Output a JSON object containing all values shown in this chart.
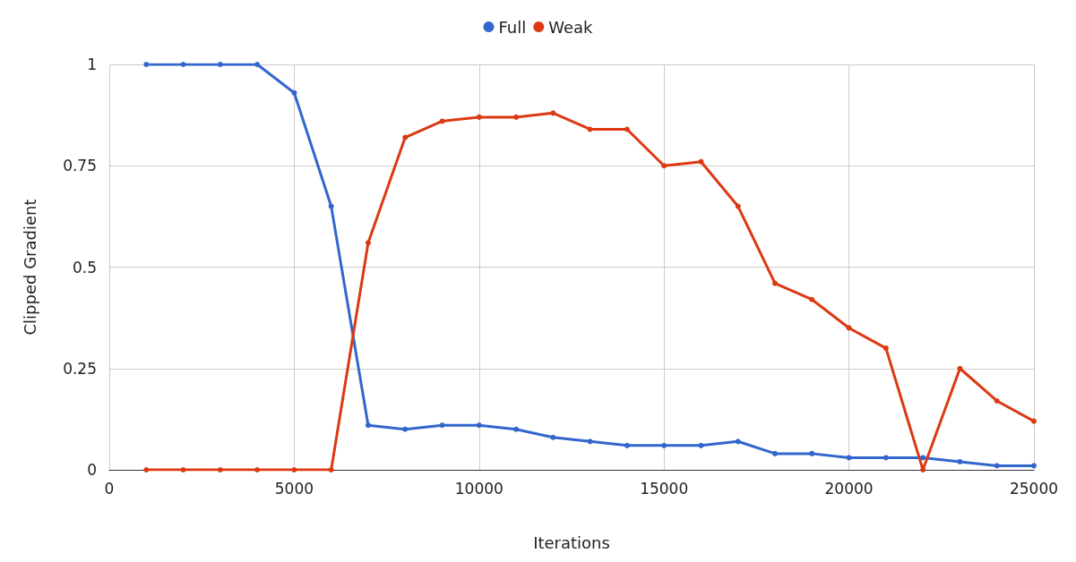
{
  "chart_data": {
    "type": "line",
    "xlabel": "Iterations",
    "ylabel": "Clipped Gradient",
    "x": [
      1000,
      2000,
      3000,
      4000,
      5000,
      6000,
      7000,
      8000,
      9000,
      10000,
      11000,
      12000,
      13000,
      14000,
      15000,
      16000,
      17000,
      18000,
      19000,
      20000,
      21000,
      22000,
      23000,
      24000,
      25000
    ],
    "series": [
      {
        "name": "Full",
        "color": "#3366cc",
        "values": [
          1,
          1,
          1,
          1,
          0.93,
          0.65,
          0.11,
          0.1,
          0.11,
          0.11,
          0.1,
          0.08,
          0.07,
          0.06,
          0.06,
          0.06,
          0.07,
          0.04,
          0.04,
          0.03,
          0.03,
          0.03,
          0.02,
          0.01,
          0.01
        ]
      },
      {
        "name": "Weak",
        "color": "#dc3912",
        "values": [
          0,
          0,
          0,
          0,
          0,
          0,
          0.56,
          0.82,
          0.86,
          0.87,
          0.87,
          0.88,
          0.84,
          0.84,
          0.75,
          0.76,
          0.65,
          0.46,
          0.42,
          0.35,
          0.3,
          0,
          0.25,
          0.17,
          0.12
        ]
      }
    ],
    "xlim": [
      0,
      25000
    ],
    "xticks": [
      0,
      5000,
      10000,
      15000,
      20000,
      25000
    ],
    "ylim": [
      0,
      1
    ],
    "yticks": [
      0,
      0.25,
      0.5,
      0.75,
      1
    ],
    "grid": true,
    "legend": "top",
    "marker": "circle",
    "line_style": "solid"
  }
}
